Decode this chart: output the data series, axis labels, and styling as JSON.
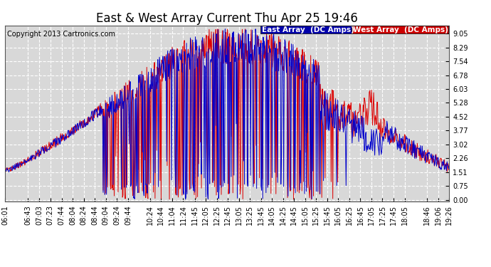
{
  "title": "East & West Array Current Thu Apr 25 19:46",
  "copyright": "Copyright 2013 Cartronics.com",
  "east_label": "East Array  (DC Amps)",
  "west_label": "West Array  (DC Amps)",
  "east_color": "#0000cc",
  "west_color": "#dd0000",
  "background_color": "#ffffff",
  "plot_bg_color": "#d8d8d8",
  "grid_color": "#ffffff",
  "yticks": [
    0.0,
    0.75,
    1.51,
    2.26,
    3.02,
    3.77,
    4.52,
    5.28,
    6.03,
    6.78,
    7.54,
    8.29,
    9.05
  ],
  "ymax": 9.5,
  "ymin": -0.1,
  "xtick_labels": [
    "06:01",
    "06:43",
    "07:03",
    "07:23",
    "07:44",
    "08:04",
    "08:24",
    "08:44",
    "09:04",
    "09:24",
    "09:44",
    "10:24",
    "10:44",
    "11:04",
    "11:24",
    "11:45",
    "12:05",
    "12:25",
    "12:45",
    "13:05",
    "13:25",
    "13:45",
    "14:05",
    "14:25",
    "14:45",
    "15:05",
    "15:25",
    "15:45",
    "16:05",
    "16:25",
    "16:45",
    "17:05",
    "17:25",
    "17:45",
    "18:05",
    "18:46",
    "19:06",
    "19:26"
  ],
  "legend_box_east_bg": "#0000aa",
  "legend_box_west_bg": "#cc0000",
  "title_fontsize": 12,
  "axis_fontsize": 7,
  "legend_fontsize": 7.5,
  "copyright_fontsize": 7
}
